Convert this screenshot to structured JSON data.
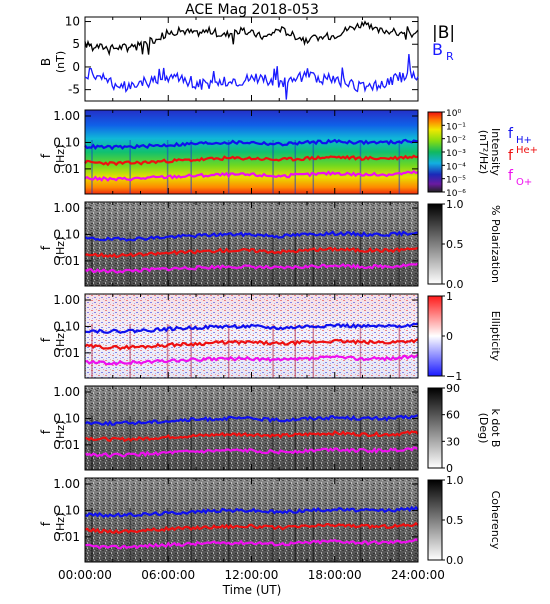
{
  "title": "ACE Mag 2018-053",
  "x_axis": {
    "label": "Time (UT)",
    "ticks": [
      "00:00:00",
      "06:00:00",
      "12:00:00",
      "18:00:00",
      "24:00:00"
    ],
    "range_hours": [
      0,
      24
    ]
  },
  "freq_ticks": [
    "1.00",
    "0.10",
    "0.01"
  ],
  "panel_ylabel": {
    "main": "f",
    "unit": "(Hz)"
  },
  "legends": {
    "mag": {
      "B_total": "|B|",
      "B_r_main": "B",
      "B_r_sub": "R"
    },
    "cyclotron": {
      "h": {
        "main": "f",
        "sub": "H+"
      },
      "he": {
        "main": "f",
        "sub": "He+"
      },
      "o": {
        "main": "f",
        "sub": "O+"
      }
    }
  },
  "colors": {
    "B_total": "#000000",
    "B_r": "#1a1aff",
    "f_H": "#1010ee",
    "f_He": "#ee1010",
    "f_O": "#ee10ee"
  },
  "chart_data": [
    {
      "type": "line",
      "panel": "magnetic-field",
      "ylabel_main": "B",
      "ylabel_unit": "(nT)",
      "ylim": [
        -7.5,
        11
      ],
      "yticks": [
        10,
        5,
        0,
        -5
      ],
      "x_hours": [
        0,
        1,
        2,
        3,
        4,
        5,
        6,
        7,
        8,
        9,
        10,
        11,
        12,
        13,
        14,
        15,
        16,
        17,
        18,
        19,
        20,
        21,
        22,
        23,
        24
      ],
      "series": [
        {
          "name": "|B|",
          "values": [
            5,
            4.5,
            4.2,
            4.5,
            5,
            6,
            7.5,
            8,
            7.5,
            8,
            7,
            8,
            7.5,
            6.5,
            8.5,
            7,
            6,
            6.5,
            7,
            8.5,
            9.5,
            8,
            8,
            7,
            7.5
          ]
        },
        {
          "name": "B_R",
          "values": [
            -1,
            -2.5,
            -3.5,
            -4,
            -3.5,
            -3,
            -3,
            -2.5,
            -3.5,
            -4,
            -3,
            -3.5,
            -2,
            -2.5,
            -4,
            -3,
            -1.5,
            -2.5,
            -3,
            -4,
            -4.5,
            -4,
            -3,
            -2,
            -2
          ]
        }
      ]
    },
    {
      "type": "heatmap",
      "panel": "intensity",
      "colorbar": {
        "label": "Intensity",
        "unit": "(nT²/Hz)",
        "ticks": [
          "10⁰",
          "10⁻¹",
          "10⁻²",
          "10⁻³",
          "10⁻⁴",
          "10⁻⁵",
          "10⁻⁶"
        ],
        "range": [
          1e-06,
          1
        ]
      }
    },
    {
      "type": "heatmap",
      "panel": "polarization",
      "colorbar": {
        "label": "% Polarization",
        "ticks": [
          "1.0",
          "0.5",
          "0.0"
        ],
        "range": [
          0,
          1
        ]
      }
    },
    {
      "type": "heatmap",
      "panel": "ellipticity",
      "colorbar": {
        "label": "Ellipticity",
        "ticks": [
          "1",
          "0",
          "−1"
        ],
        "range": [
          -1,
          1
        ]
      }
    },
    {
      "type": "heatmap",
      "panel": "k-dot-b",
      "colorbar": {
        "label": "k dot B",
        "unit": "(Deg)",
        "ticks": [
          "90",
          "60",
          "30",
          "0"
        ],
        "range": [
          0,
          90
        ]
      }
    },
    {
      "type": "heatmap",
      "panel": "coherency",
      "colorbar": {
        "label": "Coherency",
        "ticks": [
          "1.0",
          "0.5",
          "0.0"
        ],
        "range": [
          0,
          1
        ]
      }
    },
    {
      "type": "line",
      "panel": "cyclotron-frequencies (overlaid on all spectral panels)",
      "x_hours": [
        0,
        2,
        4,
        6,
        8,
        10,
        12,
        14,
        16,
        18,
        20,
        22,
        24
      ],
      "series": [
        {
          "name": "f_H+",
          "values": [
            0.07,
            0.065,
            0.07,
            0.08,
            0.09,
            0.1,
            0.1,
            0.085,
            0.1,
            0.11,
            0.1,
            0.1,
            0.12
          ]
        },
        {
          "name": "f_He+",
          "values": [
            0.018,
            0.016,
            0.017,
            0.02,
            0.022,
            0.025,
            0.025,
            0.022,
            0.025,
            0.028,
            0.025,
            0.025,
            0.03
          ]
        },
        {
          "name": "f_O+",
          "values": [
            0.0045,
            0.004,
            0.0044,
            0.005,
            0.0055,
            0.006,
            0.006,
            0.0053,
            0.006,
            0.007,
            0.006,
            0.0062,
            0.0075
          ]
        }
      ]
    }
  ]
}
